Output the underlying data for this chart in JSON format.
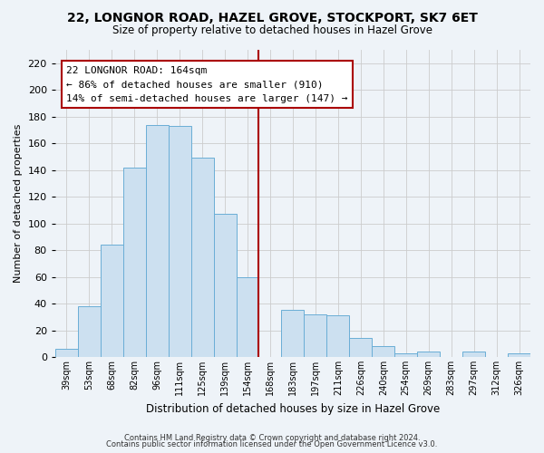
{
  "title": "22, LONGNOR ROAD, HAZEL GROVE, STOCKPORT, SK7 6ET",
  "subtitle": "Size of property relative to detached houses in Hazel Grove",
  "xlabel": "Distribution of detached houses by size in Hazel Grove",
  "ylabel": "Number of detached properties",
  "bar_color": "#cce0f0",
  "bar_edge_color": "#6aaed6",
  "bins": [
    "39sqm",
    "53sqm",
    "68sqm",
    "82sqm",
    "96sqm",
    "111sqm",
    "125sqm",
    "139sqm",
    "154sqm",
    "168sqm",
    "183sqm",
    "197sqm",
    "211sqm",
    "226sqm",
    "240sqm",
    "254sqm",
    "269sqm",
    "283sqm",
    "297sqm",
    "312sqm",
    "326sqm"
  ],
  "values": [
    6,
    38,
    84,
    142,
    174,
    173,
    149,
    107,
    60,
    0,
    35,
    32,
    31,
    14,
    8,
    3,
    4,
    0,
    4,
    0,
    3
  ],
  "vline_x": 9,
  "vline_color": "#aa0000",
  "annotation_title": "22 LONGNOR ROAD: 164sqm",
  "annotation_line1": "← 86% of detached houses are smaller (910)",
  "annotation_line2": "14% of semi-detached houses are larger (147) →",
  "annotation_box_color": "#ffffff",
  "annotation_box_edge": "#aa0000",
  "ylim": [
    0,
    230
  ],
  "yticks": [
    0,
    20,
    40,
    60,
    80,
    100,
    120,
    140,
    160,
    180,
    200,
    220
  ],
  "footnote1": "Contains HM Land Registry data © Crown copyright and database right 2024.",
  "footnote2": "Contains public sector information licensed under the Open Government Licence v3.0.",
  "grid_color": "#cccccc",
  "background_color": "#eef3f8"
}
